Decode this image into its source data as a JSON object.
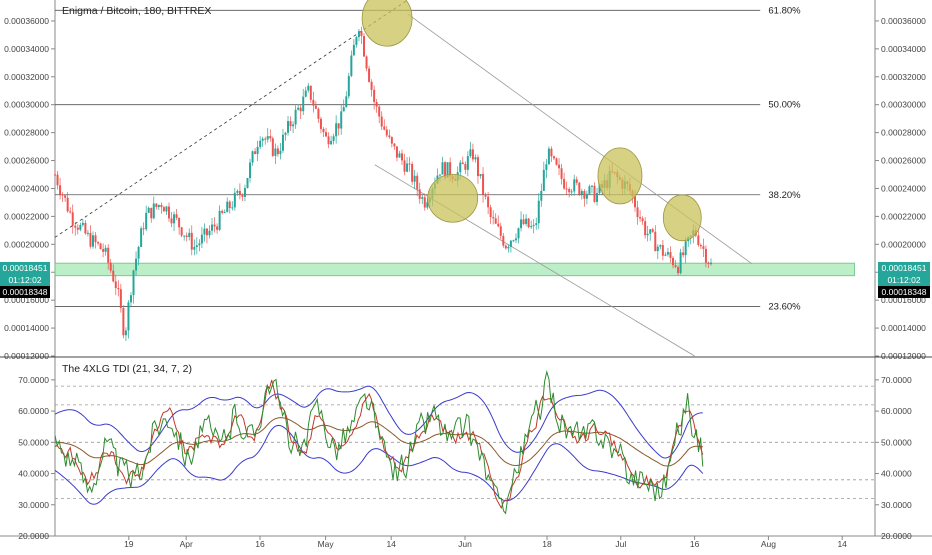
{
  "chart_data": [
    {
      "type": "candlestick",
      "title": "Enigma / Bitcoin, 180, BITTREX",
      "ylim": [
        0.00012,
        0.000375
      ],
      "yticks": [
        "0.00012000",
        "0.00014000",
        "0.00016000",
        "0.00018000",
        "0.00020000",
        "0.00022000",
        "0.00024000",
        "0.00026000",
        "0.00028000",
        "0.00030000",
        "0.00032000",
        "0.00034000",
        "0.00036000"
      ],
      "xticks": [
        "19",
        "Apr",
        "16",
        "May",
        "14",
        "Jun",
        "18",
        "Jul",
        "16",
        "Aug",
        "14"
      ],
      "price_path": [
        {
          "t": 0,
          "v": 0.00025
        },
        {
          "t": 0.02,
          "v": 0.00022
        },
        {
          "t": 0.04,
          "v": 0.000205
        },
        {
          "t": 0.06,
          "v": 0.000195
        },
        {
          "t": 0.075,
          "v": 0.00017
        },
        {
          "t": 0.085,
          "v": 0.000135
        },
        {
          "t": 0.095,
          "v": 0.00018
        },
        {
          "t": 0.11,
          "v": 0.00022
        },
        {
          "t": 0.13,
          "v": 0.00023
        },
        {
          "t": 0.15,
          "v": 0.000215
        },
        {
          "t": 0.17,
          "v": 0.000198
        },
        {
          "t": 0.19,
          "v": 0.00021
        },
        {
          "t": 0.21,
          "v": 0.000225
        },
        {
          "t": 0.23,
          "v": 0.00024
        },
        {
          "t": 0.25,
          "v": 0.00028
        },
        {
          "t": 0.27,
          "v": 0.000265
        },
        {
          "t": 0.29,
          "v": 0.00029
        },
        {
          "t": 0.31,
          "v": 0.00031
        },
        {
          "t": 0.33,
          "v": 0.000275
        },
        {
          "t": 0.35,
          "v": 0.00029
        },
        {
          "t": 0.37,
          "v": 0.00036
        },
        {
          "t": 0.39,
          "v": 0.0003
        },
        {
          "t": 0.41,
          "v": 0.00027
        },
        {
          "t": 0.43,
          "v": 0.000255
        },
        {
          "t": 0.45,
          "v": 0.00023
        },
        {
          "t": 0.47,
          "v": 0.000255
        },
        {
          "t": 0.49,
          "v": 0.00025
        },
        {
          "t": 0.51,
          "v": 0.000265
        },
        {
          "t": 0.53,
          "v": 0.00022
        },
        {
          "t": 0.55,
          "v": 0.0002
        },
        {
          "t": 0.57,
          "v": 0.000215
        },
        {
          "t": 0.585,
          "v": 0.00021
        },
        {
          "t": 0.6,
          "v": 0.000265
        },
        {
          "t": 0.62,
          "v": 0.000245
        },
        {
          "t": 0.64,
          "v": 0.00024
        },
        {
          "t": 0.66,
          "v": 0.000235
        },
        {
          "t": 0.68,
          "v": 0.00025
        },
        {
          "t": 0.7,
          "v": 0.00024
        },
        {
          "t": 0.72,
          "v": 0.00021
        },
        {
          "t": 0.74,
          "v": 0.000195
        },
        {
          "t": 0.76,
          "v": 0.000185
        },
        {
          "t": 0.78,
          "v": 0.00021
        },
        {
          "t": 0.8,
          "v": 0.000185
        }
      ],
      "fib_levels": [
        {
          "label": "61.80%",
          "value": 0.0003676
        },
        {
          "label": "50.00%",
          "value": 0.0003
        },
        {
          "label": "38.20%",
          "value": 0.0002355
        },
        {
          "label": "23.60%",
          "value": 0.0001555
        }
      ],
      "support_zone": [
        0.0001775,
        0.0001865
      ],
      "last_price": "0.00018451",
      "countdown": "01:12:02",
      "marker_price": "0.00018348",
      "colors": {
        "up": "#26a69a",
        "down": "#ef5350",
        "zone": "#a5e8b5",
        "circle": "#c8c25a",
        "marker": "#000000",
        "price_label": "#26a69a"
      }
    },
    {
      "type": "line",
      "title": "The 4XLG TDI (21, 34, 7, 2)",
      "ylim": [
        20,
        77
      ],
      "yticks": [
        "20.0000",
        "30.0000",
        "40.0000",
        "50.0000",
        "60.0000",
        "70.0000"
      ],
      "reference_levels": [
        32,
        38,
        50,
        62,
        68
      ],
      "rsi_path": [
        {
          "t": 0,
          "v": 50
        },
        {
          "t": 0.02,
          "v": 45
        },
        {
          "t": 0.04,
          "v": 35
        },
        {
          "t": 0.06,
          "v": 50
        },
        {
          "t": 0.08,
          "v": 40
        },
        {
          "t": 0.1,
          "v": 38
        },
        {
          "t": 0.12,
          "v": 55
        },
        {
          "t": 0.14,
          "v": 60
        },
        {
          "t": 0.16,
          "v": 45
        },
        {
          "t": 0.18,
          "v": 55
        },
        {
          "t": 0.2,
          "v": 48
        },
        {
          "t": 0.22,
          "v": 60
        },
        {
          "t": 0.24,
          "v": 50
        },
        {
          "t": 0.26,
          "v": 72
        },
        {
          "t": 0.28,
          "v": 55
        },
        {
          "t": 0.3,
          "v": 45
        },
        {
          "t": 0.32,
          "v": 62
        },
        {
          "t": 0.34,
          "v": 48
        },
        {
          "t": 0.36,
          "v": 55
        },
        {
          "t": 0.38,
          "v": 65
        },
        {
          "t": 0.4,
          "v": 45
        },
        {
          "t": 0.42,
          "v": 40
        },
        {
          "t": 0.44,
          "v": 52
        },
        {
          "t": 0.46,
          "v": 60
        },
        {
          "t": 0.48,
          "v": 50
        },
        {
          "t": 0.5,
          "v": 55
        },
        {
          "t": 0.52,
          "v": 45
        },
        {
          "t": 0.54,
          "v": 28
        },
        {
          "t": 0.56,
          "v": 40
        },
        {
          "t": 0.58,
          "v": 55
        },
        {
          "t": 0.6,
          "v": 68
        },
        {
          "t": 0.62,
          "v": 55
        },
        {
          "t": 0.64,
          "v": 50
        },
        {
          "t": 0.66,
          "v": 55
        },
        {
          "t": 0.68,
          "v": 48
        },
        {
          "t": 0.7,
          "v": 40
        },
        {
          "t": 0.72,
          "v": 38
        },
        {
          "t": 0.74,
          "v": 35
        },
        {
          "t": 0.76,
          "v": 55
        },
        {
          "t": 0.77,
          "v": 65
        },
        {
          "t": 0.78,
          "v": 52
        },
        {
          "t": 0.79,
          "v": 45
        }
      ],
      "colors": {
        "band": "#3b3bcf",
        "price": "#2e8b2e",
        "signal": "#c0392b",
        "base": "#8b5a2b"
      }
    }
  ]
}
